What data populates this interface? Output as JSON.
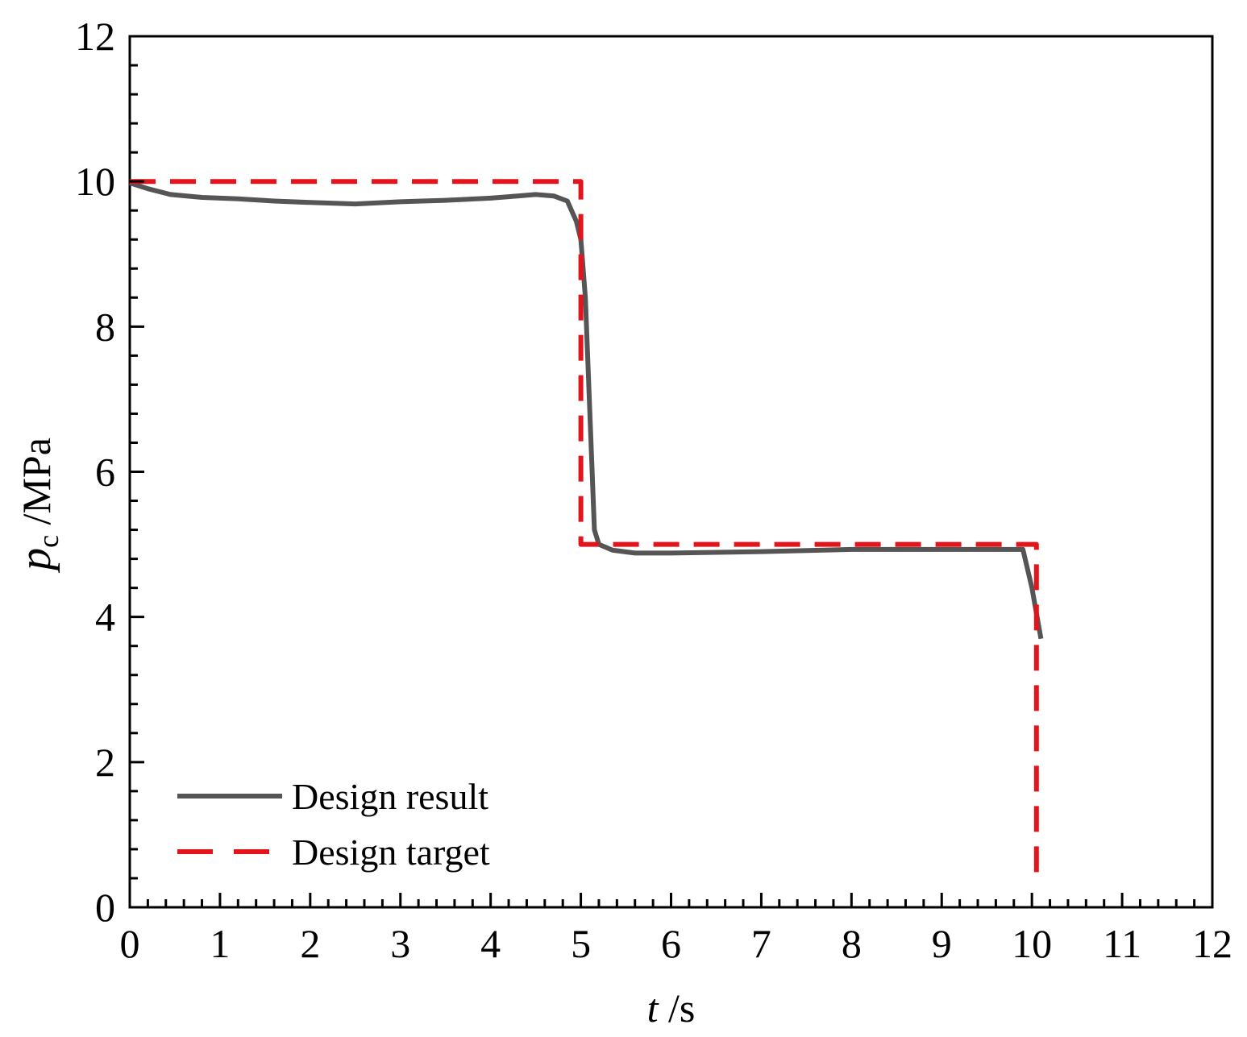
{
  "chart_data": {
    "type": "line",
    "xlabel": {
      "var": "t",
      "unit": " /s"
    },
    "ylabel": {
      "var": "p",
      "sub": "c",
      "unit": " /MPa"
    },
    "xlim": [
      0,
      12
    ],
    "ylim": [
      0,
      12
    ],
    "xticks": [
      0,
      1,
      2,
      3,
      4,
      5,
      6,
      7,
      8,
      9,
      10,
      11,
      12
    ],
    "yticks": [
      0,
      2,
      4,
      6,
      8,
      10,
      12
    ],
    "grid": false,
    "legend_position": "bottom-left",
    "series": [
      {
        "name": "Design result",
        "style": "solid",
        "color": "#555555",
        "points": [
          [
            0,
            9.98
          ],
          [
            0.2,
            9.9
          ],
          [
            0.45,
            9.82
          ],
          [
            0.8,
            9.78
          ],
          [
            1.2,
            9.76
          ],
          [
            1.6,
            9.73
          ],
          [
            2.0,
            9.71
          ],
          [
            2.5,
            9.69
          ],
          [
            3.0,
            9.72
          ],
          [
            3.5,
            9.74
          ],
          [
            4.0,
            9.77
          ],
          [
            4.3,
            9.8
          ],
          [
            4.5,
            9.82
          ],
          [
            4.7,
            9.8
          ],
          [
            4.85,
            9.73
          ],
          [
            4.95,
            9.45
          ],
          [
            5.0,
            9.2
          ],
          [
            5.05,
            8.4
          ],
          [
            5.1,
            6.8
          ],
          [
            5.15,
            5.2
          ],
          [
            5.2,
            5.0
          ],
          [
            5.35,
            4.92
          ],
          [
            5.6,
            4.88
          ],
          [
            6.0,
            4.88
          ],
          [
            7.0,
            4.9
          ],
          [
            8.0,
            4.93
          ],
          [
            9.0,
            4.93
          ],
          [
            9.9,
            4.93
          ],
          [
            10.0,
            4.4
          ],
          [
            10.1,
            3.7
          ]
        ]
      },
      {
        "name": "Design target",
        "style": "dashed",
        "color": "#e3141b",
        "points": [
          [
            0,
            10
          ],
          [
            5,
            10
          ],
          [
            5,
            5
          ],
          [
            10.05,
            5
          ],
          [
            10.05,
            0.3
          ]
        ]
      }
    ]
  }
}
